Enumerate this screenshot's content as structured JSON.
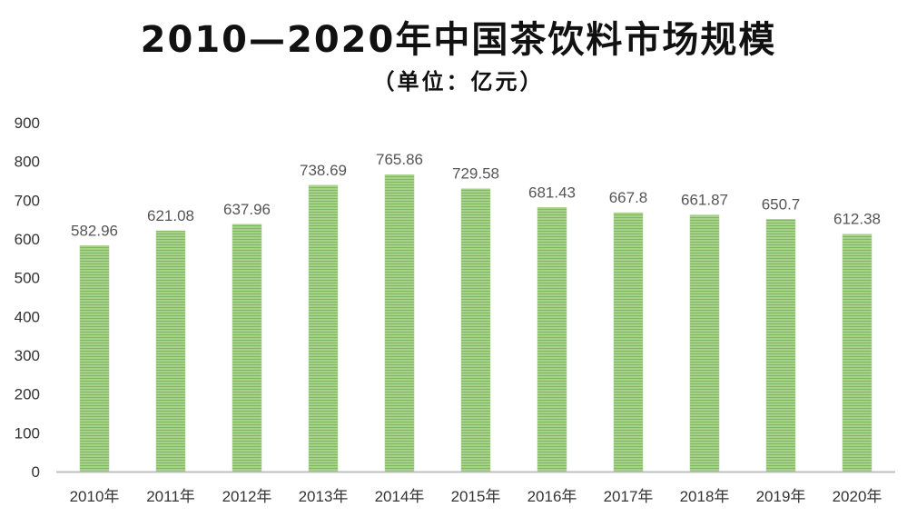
{
  "chart_data": {
    "type": "bar",
    "title": "2010—2020年中国茶饮料市场规模",
    "subtitle": "（单位：亿元）",
    "categories": [
      "2010年",
      "2011年",
      "2012年",
      "2013年",
      "2014年",
      "2015年",
      "2016年",
      "2017年",
      "2018年",
      "2019年",
      "2020年"
    ],
    "values": [
      582.96,
      621.08,
      637.96,
      738.69,
      765.86,
      729.58,
      681.43,
      667.8,
      661.87,
      650.7,
      612.38
    ],
    "data_labels": [
      "582.96",
      "621.08",
      "637.96",
      "738.69",
      "765.86",
      "729.58",
      "681.43",
      "667.8",
      "661.87",
      "650.7",
      "612.38"
    ],
    "yticks": [
      "0",
      "100",
      "200",
      "300",
      "400",
      "500",
      "600",
      "700",
      "800",
      "900"
    ],
    "ylim": [
      0,
      900
    ],
    "grid": false,
    "legend": "none",
    "colors": {
      "bar_fill": "#a9d18e",
      "bar_stripe": "#7fb85a",
      "axis": "#bfbfbf",
      "text": "#333333"
    }
  }
}
